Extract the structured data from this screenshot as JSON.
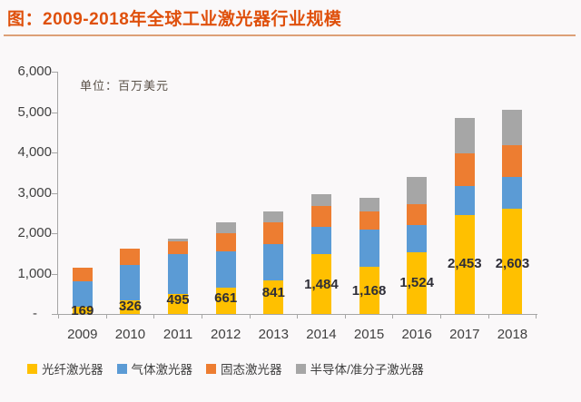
{
  "header": {
    "title": "图：2009-2018年全球工业激光器行业规模"
  },
  "chart_data": {
    "type": "bar",
    "stacked": true,
    "title": "图：2009-2018年全球工业激光器行业规模",
    "unit_label": "单位：百万美元",
    "categories": [
      "2009",
      "2010",
      "2011",
      "2012",
      "2013",
      "2014",
      "2015",
      "2016",
      "2017",
      "2018"
    ],
    "series": [
      {
        "key": "fiber",
        "name": "光纤激光器",
        "color": "#FFC000",
        "values": [
          169,
          326,
          495,
          661,
          841,
          1484,
          1168,
          1524,
          2453,
          2603
        ]
      },
      {
        "key": "gas",
        "name": "气体激光器",
        "color": "#5B9BD5",
        "values": [
          635,
          880,
          995,
          885,
          900,
          675,
          915,
          675,
          710,
          785
        ]
      },
      {
        "key": "solid",
        "name": "固态激光器",
        "color": "#ED7D31",
        "values": [
          350,
          420,
          300,
          450,
          525,
          510,
          450,
          525,
          825,
          800
        ]
      },
      {
        "key": "semi",
        "name": "半导体/准分子激光器",
        "color": "#A6A6A6",
        "values": [
          0,
          0,
          75,
          265,
          265,
          300,
          335,
          675,
          860,
          865
        ]
      }
    ],
    "bar_labels": [
      "169",
      "326",
      "495",
      "661",
      "841",
      "1,484",
      "1,168",
      "1,524",
      "2,453",
      "2,603"
    ],
    "bar_labels_series": "光纤激光器",
    "y_axis": {
      "max": 6000,
      "ticks": [
        {
          "label": "6,000",
          "value": 6000
        },
        {
          "label": "5,000",
          "value": 5000
        },
        {
          "label": "4,000",
          "value": 4000
        },
        {
          "label": "3,000",
          "value": 3000
        },
        {
          "label": "2,000",
          "value": 2000
        },
        {
          "label": "1,000",
          "value": 1000
        },
        {
          "label": "-",
          "value": 0
        }
      ]
    },
    "grid": false,
    "legend_position": "bottom"
  },
  "colors": {
    "title": "#DF500C",
    "underline": "#DDA077",
    "axis": "#A6A6A6",
    "text": "#404040",
    "label_text": "#2E2E38",
    "background": "#FAF8F9"
  }
}
